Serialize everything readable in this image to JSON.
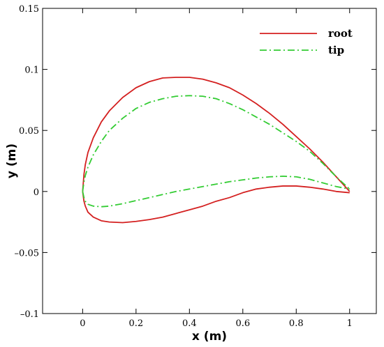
{
  "chart_data": {
    "type": "line",
    "title": "",
    "xlabel": "x (m)",
    "ylabel": "y (m)",
    "xlim": [
      -0.15,
      1.1
    ],
    "ylim": [
      -0.1,
      0.15
    ],
    "grid": false,
    "legend_position": "top-right",
    "x_ticks": [
      0,
      0.2,
      0.4,
      0.6,
      0.8,
      1
    ],
    "x_tick_labels": [
      "0",
      "0.2",
      "0.4",
      "0.6",
      "0.8",
      "1"
    ],
    "y_ticks": [
      -0.1,
      -0.05,
      0,
      0.05,
      0.1,
      0.15
    ],
    "y_tick_labels": [
      "–0.1",
      "–0.05",
      "0",
      "0.05",
      "0.1",
      "0.15"
    ],
    "series": [
      {
        "name": "root",
        "color": "#d42020",
        "dash": "solid",
        "upper": {
          "x": [
            0,
            0.005,
            0.01,
            0.02,
            0.04,
            0.07,
            0.1,
            0.15,
            0.2,
            0.25,
            0.3,
            0.35,
            0.4,
            0.45,
            0.5,
            0.55,
            0.6,
            0.65,
            0.7,
            0.75,
            0.8,
            0.85,
            0.9,
            0.95,
            1.0
          ],
          "y": [
            0,
            0.014,
            0.022,
            0.032,
            0.044,
            0.057,
            0.066,
            0.077,
            0.085,
            0.09,
            0.093,
            0.0935,
            0.0935,
            0.092,
            0.089,
            0.085,
            0.079,
            0.072,
            0.064,
            0.055,
            0.045,
            0.035,
            0.024,
            0.012,
            0.0
          ]
        },
        "lower": {
          "x": [
            0,
            0.005,
            0.01,
            0.02,
            0.04,
            0.07,
            0.1,
            0.15,
            0.2,
            0.25,
            0.3,
            0.35,
            0.4,
            0.45,
            0.5,
            0.55,
            0.6,
            0.65,
            0.7,
            0.75,
            0.8,
            0.85,
            0.9,
            0.95,
            1.0
          ],
          "y": [
            0,
            -0.008,
            -0.012,
            -0.017,
            -0.021,
            -0.024,
            -0.025,
            -0.0255,
            -0.0245,
            -0.023,
            -0.021,
            -0.018,
            -0.015,
            -0.012,
            -0.008,
            -0.005,
            -0.001,
            0.002,
            0.0035,
            0.0045,
            0.0045,
            0.0035,
            0.002,
            0.0,
            -0.001
          ]
        }
      },
      {
        "name": "tip",
        "color": "#33cc33",
        "dash": "dashdot",
        "upper": {
          "x": [
            0,
            0.005,
            0.01,
            0.02,
            0.04,
            0.07,
            0.1,
            0.15,
            0.2,
            0.25,
            0.3,
            0.35,
            0.4,
            0.45,
            0.5,
            0.55,
            0.6,
            0.65,
            0.7,
            0.75,
            0.8,
            0.85,
            0.9,
            0.95,
            1.0
          ],
          "y": [
            0,
            0.008,
            0.013,
            0.02,
            0.03,
            0.041,
            0.05,
            0.06,
            0.068,
            0.073,
            0.076,
            0.078,
            0.0785,
            0.078,
            0.076,
            0.072,
            0.067,
            0.061,
            0.055,
            0.048,
            0.041,
            0.033,
            0.023,
            0.012,
            0.002
          ]
        },
        "lower": {
          "x": [
            0,
            0.005,
            0.01,
            0.02,
            0.04,
            0.07,
            0.1,
            0.15,
            0.2,
            0.25,
            0.3,
            0.35,
            0.4,
            0.45,
            0.5,
            0.55,
            0.6,
            0.65,
            0.7,
            0.75,
            0.8,
            0.85,
            0.9,
            0.95,
            1.0
          ],
          "y": [
            0,
            -0.005,
            -0.008,
            -0.0105,
            -0.012,
            -0.0125,
            -0.012,
            -0.01,
            -0.0075,
            -0.005,
            -0.0025,
            0.0,
            0.002,
            0.004,
            0.006,
            0.008,
            0.0095,
            0.011,
            0.012,
            0.0125,
            0.012,
            0.01,
            0.007,
            0.004,
            0.002
          ]
        }
      }
    ]
  }
}
